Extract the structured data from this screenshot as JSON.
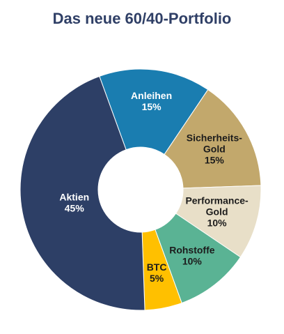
{
  "chart_data": {
    "type": "pie",
    "title": "Das neue 60/40-Portfolio",
    "donut": true,
    "slices": [
      {
        "label": [
          "Anleihen"
        ],
        "value": 15,
        "value_label": "15%",
        "color": "#1a7db0",
        "text_color": "#ffffff"
      },
      {
        "label": [
          "Sicherheits-",
          "Gold"
        ],
        "value": 15,
        "value_label": "15%",
        "color": "#c2a86c",
        "text_color": "#1c1c1c"
      },
      {
        "label": [
          "Performance-",
          "Gold"
        ],
        "value": 10,
        "value_label": "10%",
        "color": "#e8dfc8",
        "text_color": "#1c1c1c"
      },
      {
        "label": [
          "Rohstoffe"
        ],
        "value": 10,
        "value_label": "10%",
        "color": "#5ab394",
        "text_color": "#1c1c1c"
      },
      {
        "label": [
          "BTC"
        ],
        "value": 5,
        "value_label": "5%",
        "color": "#ffc000",
        "text_color": "#1c1c1c"
      },
      {
        "label": [
          "Aktien"
        ],
        "value": 45,
        "value_label": "45%",
        "color": "#2d3f66",
        "text_color": "#ffffff"
      }
    ]
  }
}
